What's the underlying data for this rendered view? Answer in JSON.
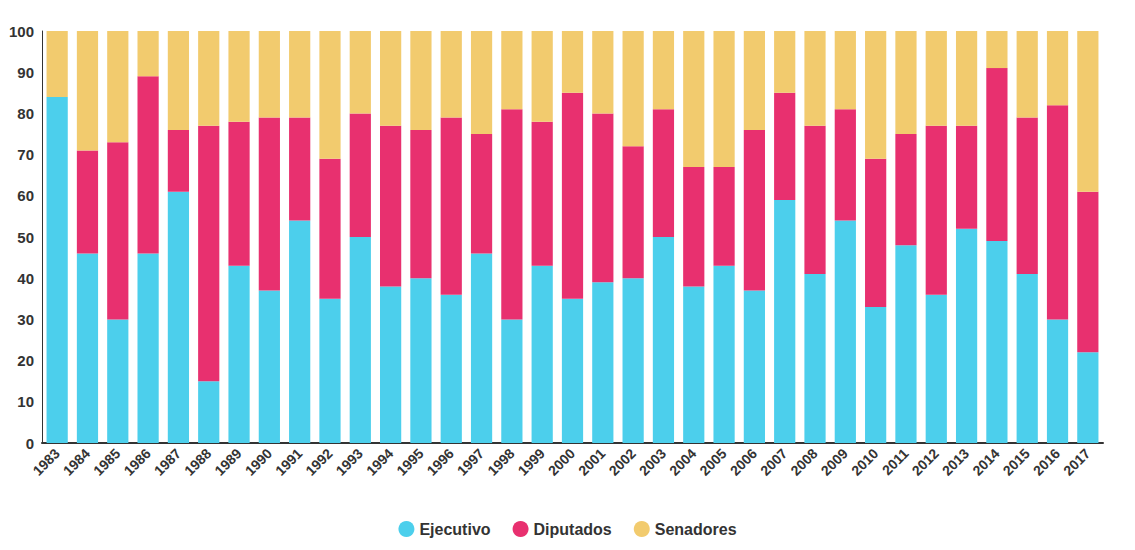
{
  "chart_data": {
    "type": "bar",
    "stacked": true,
    "grid": false,
    "legend": "bottom",
    "categories": [
      "1983",
      "1984",
      "1985",
      "1986",
      "1987",
      "1988",
      "1989",
      "1990",
      "1991",
      "1992",
      "1993",
      "1994",
      "1995",
      "1996",
      "1997",
      "1998",
      "1999",
      "2000",
      "2001",
      "2002",
      "2003",
      "2004",
      "2005",
      "2006",
      "2007",
      "2008",
      "2009",
      "2010",
      "2011",
      "2012",
      "2013",
      "2014",
      "2015",
      "2016",
      "2017"
    ],
    "series": [
      {
        "name": "Ejecutivo",
        "color": "#4ccfec",
        "values": [
          84,
          46,
          30,
          46,
          61,
          15,
          43,
          37,
          54,
          35,
          50,
          38,
          40,
          36,
          46,
          30,
          43,
          35,
          39,
          40,
          50,
          38,
          43,
          37,
          59,
          41,
          54,
          33,
          48,
          36,
          52,
          49,
          41,
          30,
          22
        ]
      },
      {
        "name": "Diputados",
        "color": "#e8306f",
        "values": [
          0,
          25,
          43,
          43,
          15,
          62,
          35,
          42,
          25,
          34,
          30,
          39,
          36,
          43,
          29,
          51,
          35,
          50,
          41,
          32,
          31,
          29,
          24,
          39,
          26,
          36,
          27,
          36,
          27,
          41,
          25,
          42,
          38,
          52,
          39
        ]
      },
      {
        "name": "Senadores",
        "color": "#f2cb6e",
        "values": [
          16,
          29,
          27,
          11,
          24,
          23,
          22,
          21,
          21,
          31,
          20,
          23,
          24,
          21,
          25,
          19,
          22,
          15,
          20,
          28,
          19,
          33,
          33,
          24,
          15,
          23,
          19,
          31,
          25,
          23,
          23,
          9,
          21,
          18,
          39
        ]
      }
    ],
    "ylim": [
      0,
      100
    ],
    "yticks": [
      0,
      10,
      20,
      30,
      40,
      50,
      60,
      70,
      80,
      90,
      100
    ]
  }
}
